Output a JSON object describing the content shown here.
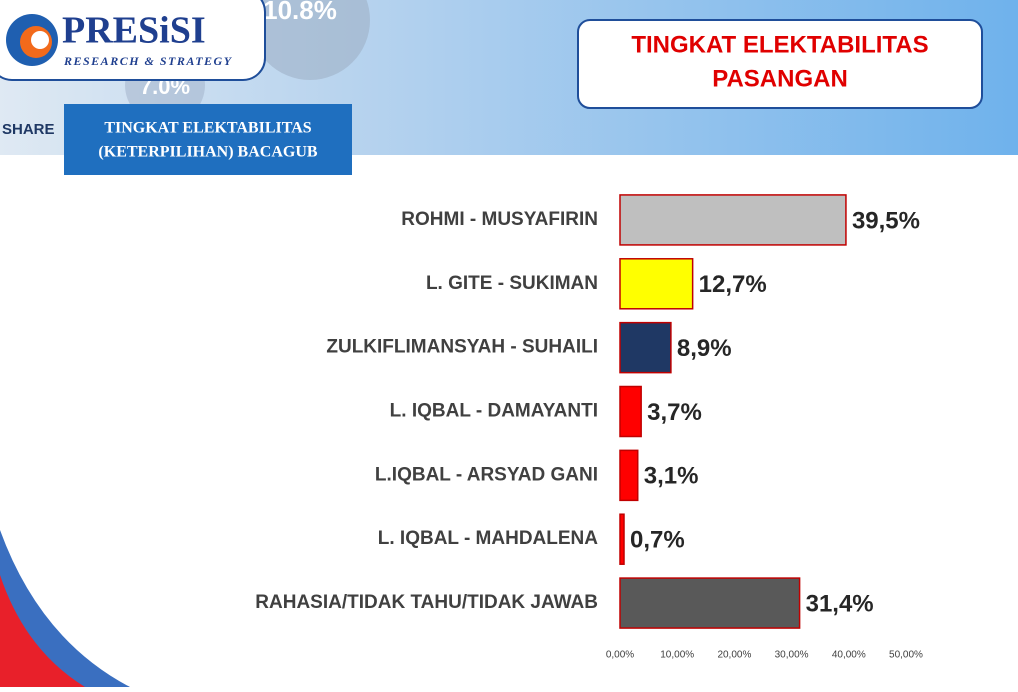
{
  "logo": {
    "name": "PRESiSI",
    "tagline": "RESEARCH & STRATEGY"
  },
  "background_texts": [
    "10.8%",
    "7.0%",
    "SHARE"
  ],
  "header": {
    "title_lines": [
      "TINGKAT ELEKTABILITAS",
      "PASANGAN"
    ],
    "subtitle_lines": [
      "TINGKAT ELEKTABILITAS",
      "(KETERPILIHAN) BACAGUB"
    ]
  },
  "chart_data": {
    "type": "hbar",
    "categories": [
      "ROHMI - MUSYAFIRIN",
      "L. GITE - SUKIMAN",
      "ZULKIFLIMANSYAH - SUHAILI",
      "L. IQBAL - DAMAYANTI",
      "L.IQBAL - ARSYAD GANI",
      "L. IQBAL - MAHDALENA",
      "RAHASIA/TIDAK TAHU/TIDAK JAWAB"
    ],
    "values": [
      39.5,
      12.7,
      8.9,
      3.7,
      3.1,
      0.7,
      31.4
    ],
    "value_labels": [
      "39,5%",
      "12,7%",
      "8,9%",
      "3,7%",
      "3,1%",
      "0,7%",
      "31,4%"
    ],
    "colors": [
      "#bfbfbf",
      "#ffff00",
      "#1f3864",
      "#ff0000",
      "#ff0000",
      "#ff0000",
      "#595959"
    ],
    "border_color": "#c00000",
    "xlim": [
      0,
      50
    ],
    "xticks": [
      {
        "value": 0,
        "label": "0,00%"
      },
      {
        "value": 10,
        "label": "10,00%"
      },
      {
        "value": 20,
        "label": "20,00%"
      },
      {
        "value": 30,
        "label": "30,00%"
      },
      {
        "value": 40,
        "label": "40,00%"
      },
      {
        "value": 50,
        "label": "50,00%"
      }
    ],
    "grid": false
  }
}
